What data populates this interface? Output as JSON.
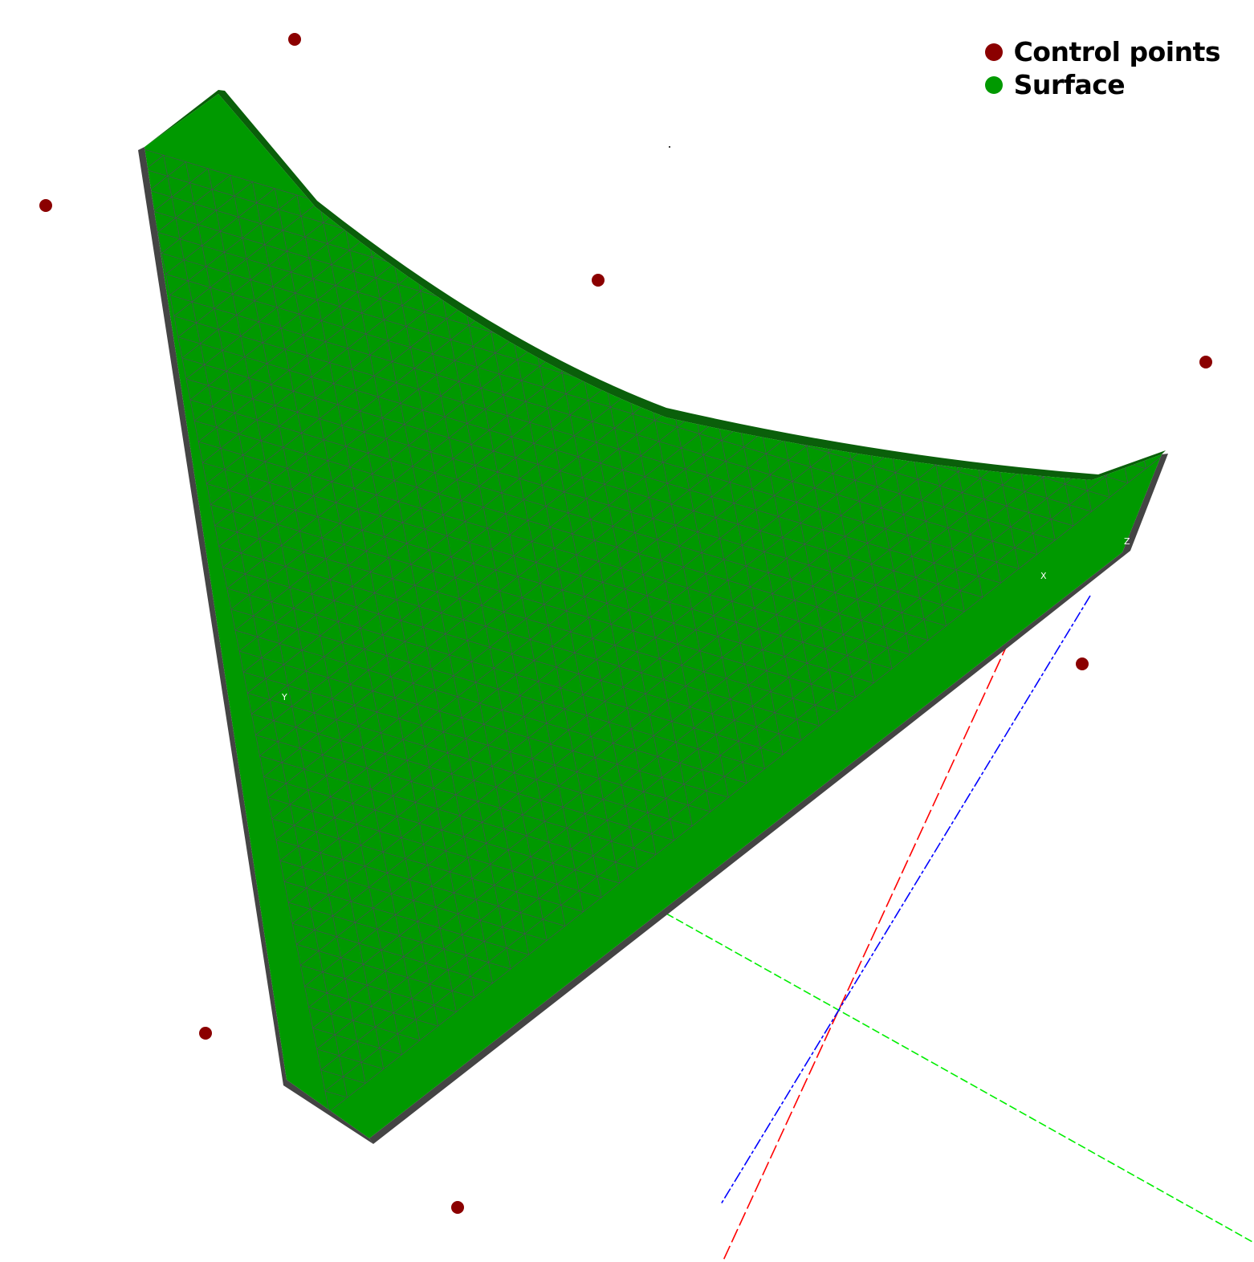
{
  "legend": {
    "items": [
      {
        "label": "Control points",
        "color": "#8b0000"
      },
      {
        "label": "Surface",
        "color": "#009900"
      }
    ]
  },
  "axes": {
    "labels": {
      "x": "X",
      "y": "Y",
      "z": "Z"
    },
    "colors": {
      "x": "#ff0000",
      "y": "#00ee00",
      "z": "#0000ff"
    }
  },
  "surface": {
    "fill": "#009900",
    "mesh_line": "#5a3a6a",
    "side_shade": "#444444",
    "rim_shade": "#0a5f0a"
  },
  "control_points": {
    "color": "#8b0000",
    "count": 9
  }
}
